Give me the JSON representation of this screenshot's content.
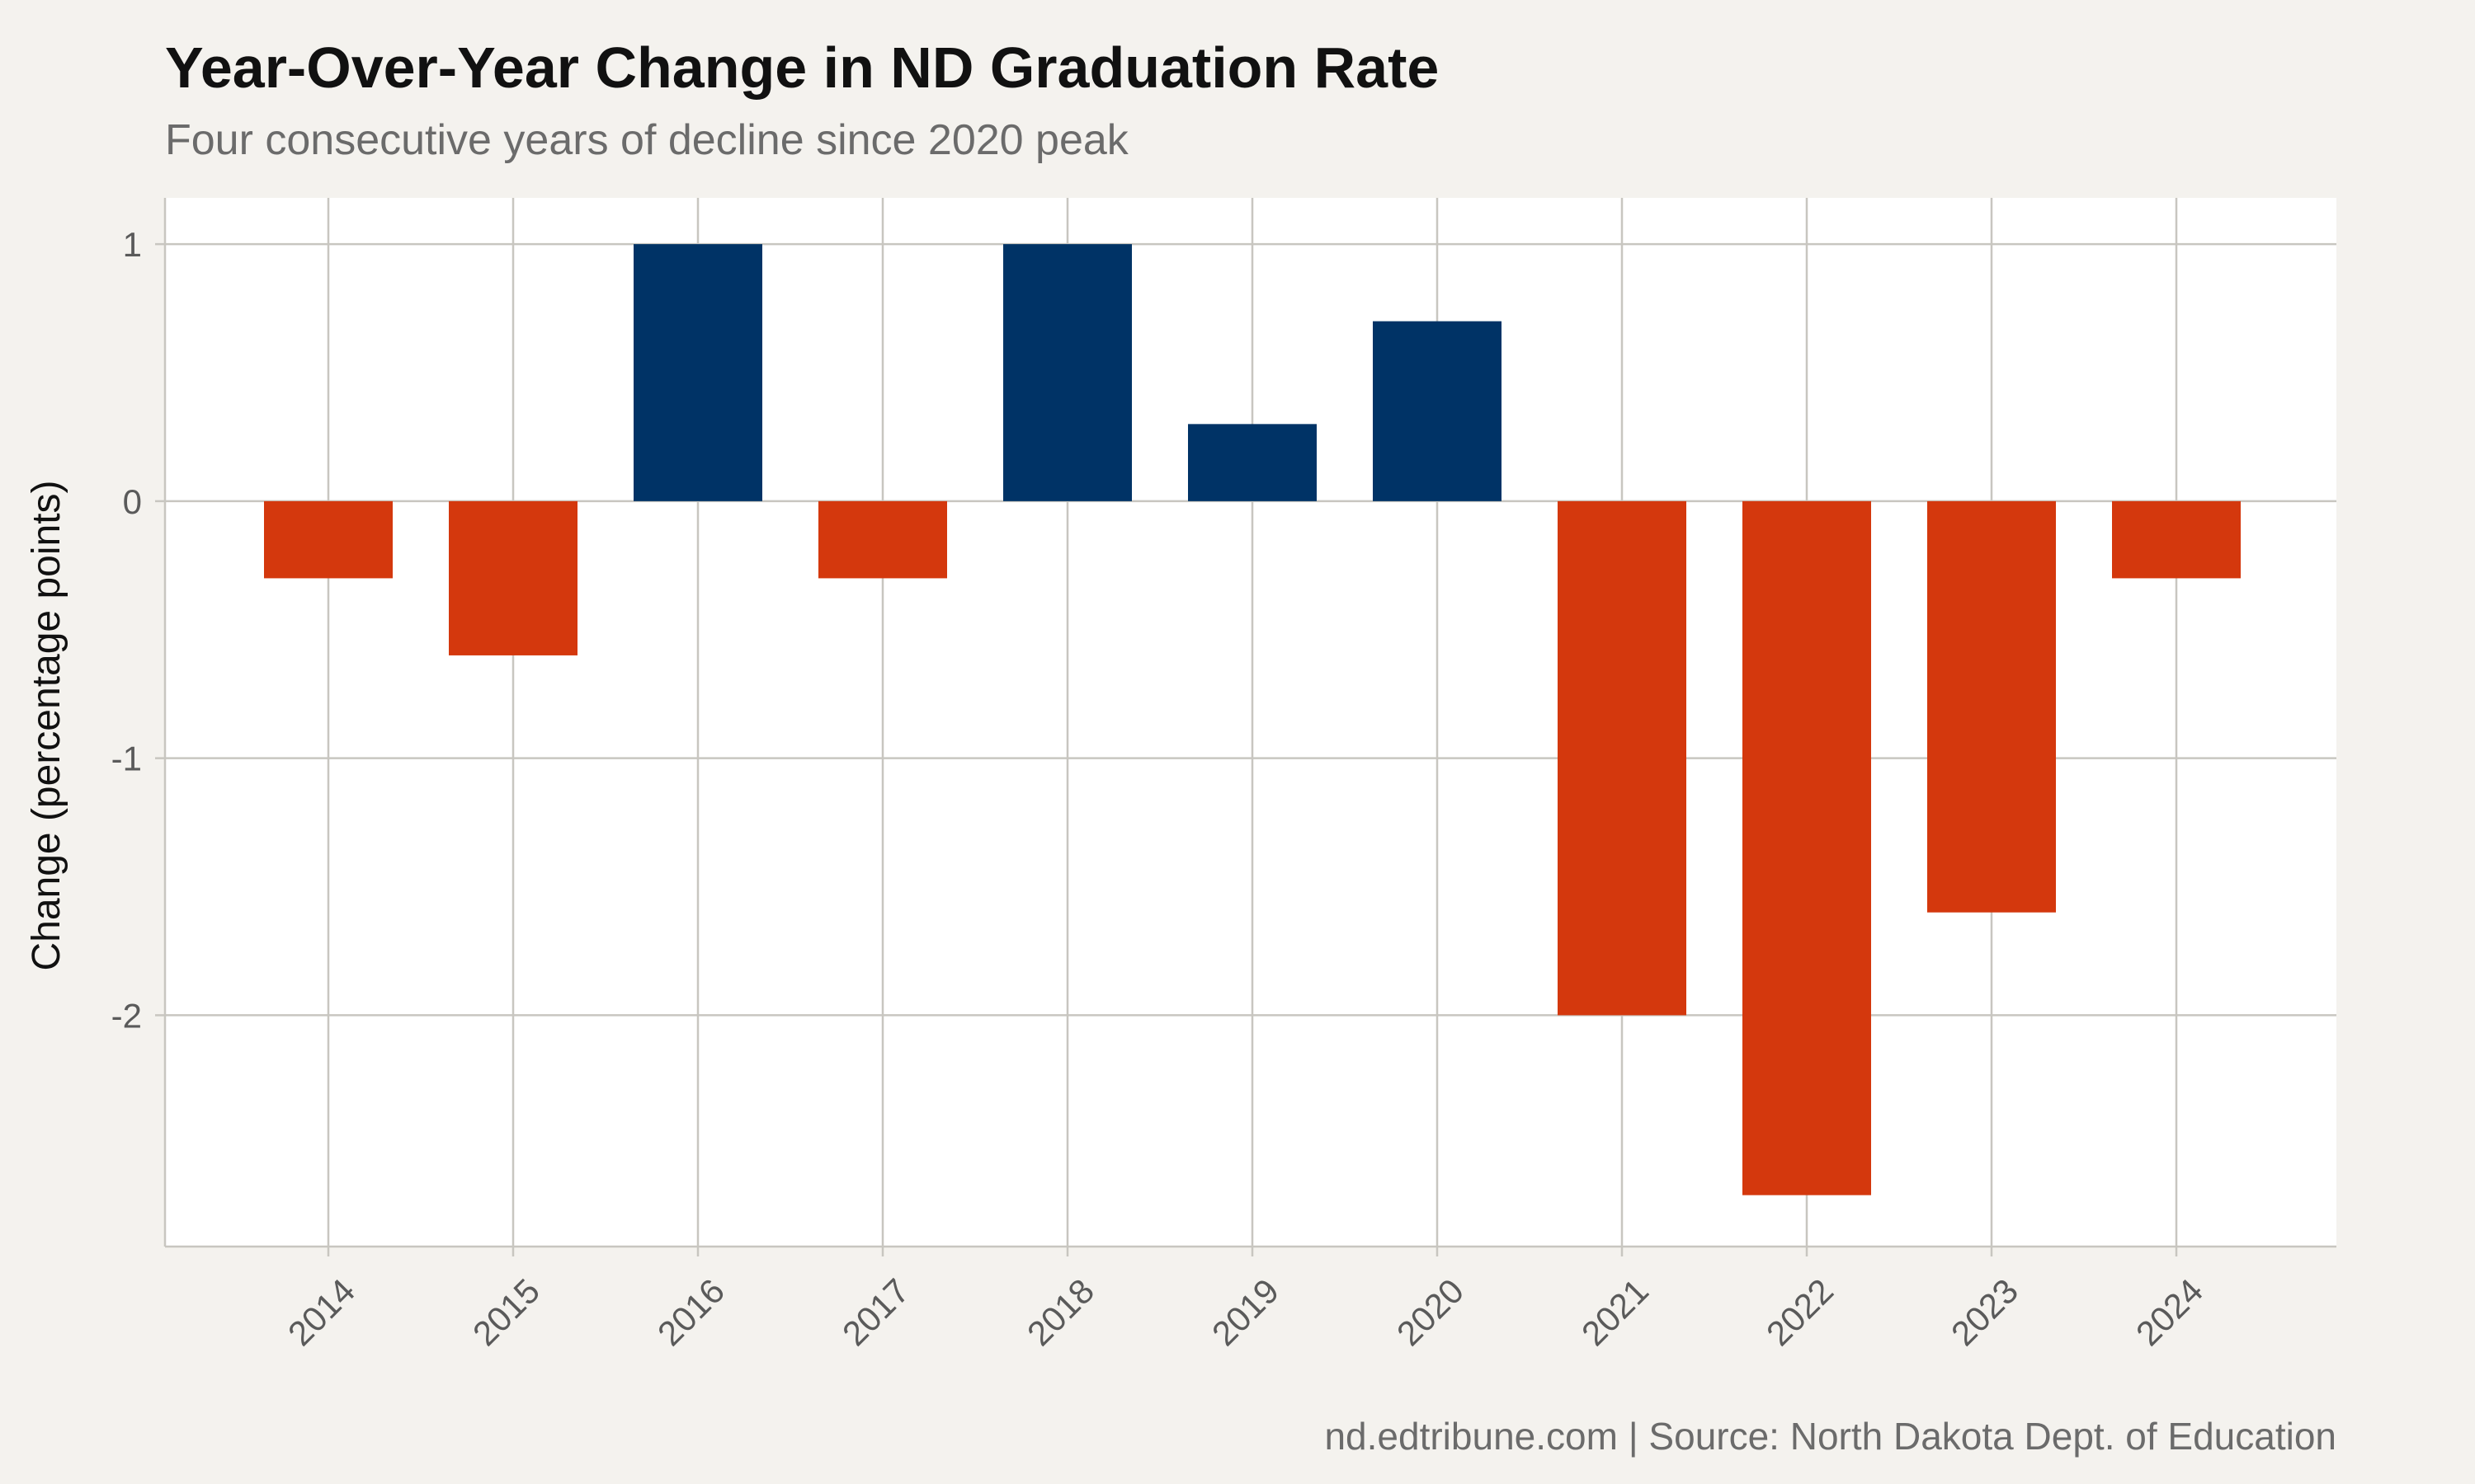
{
  "chart_data": {
    "type": "bar",
    "title": "Year-Over-Year Change in ND Graduation Rate",
    "subtitle": "Four consecutive years of decline since 2020 peak",
    "caption": "nd.edtribune.com | Source: North Dakota Dept. of Education",
    "xlabel": "",
    "ylabel": "Change (percentage points)",
    "categories": [
      "2014",
      "2015",
      "2016",
      "2017",
      "2018",
      "2019",
      "2020",
      "2021",
      "2022",
      "2023",
      "2024"
    ],
    "values": [
      -0.3,
      -0.6,
      1.0,
      -0.3,
      1.0,
      0.3,
      0.7,
      -2.0,
      -2.7,
      -1.6,
      -0.3
    ],
    "ylim": [
      -2.9,
      1.18
    ],
    "yticks": [
      {
        "value": 1,
        "label": "1"
      },
      {
        "value": 0,
        "label": "0"
      },
      {
        "value": -1,
        "label": "-1"
      },
      {
        "value": -2,
        "label": "-2"
      }
    ],
    "grid": true,
    "legend": "none",
    "colors": {
      "positive": "#003366",
      "negative": "#d4380d",
      "panel": "#ffffff",
      "background": "#f4f2ee",
      "grid": "#c8c6c0"
    }
  }
}
